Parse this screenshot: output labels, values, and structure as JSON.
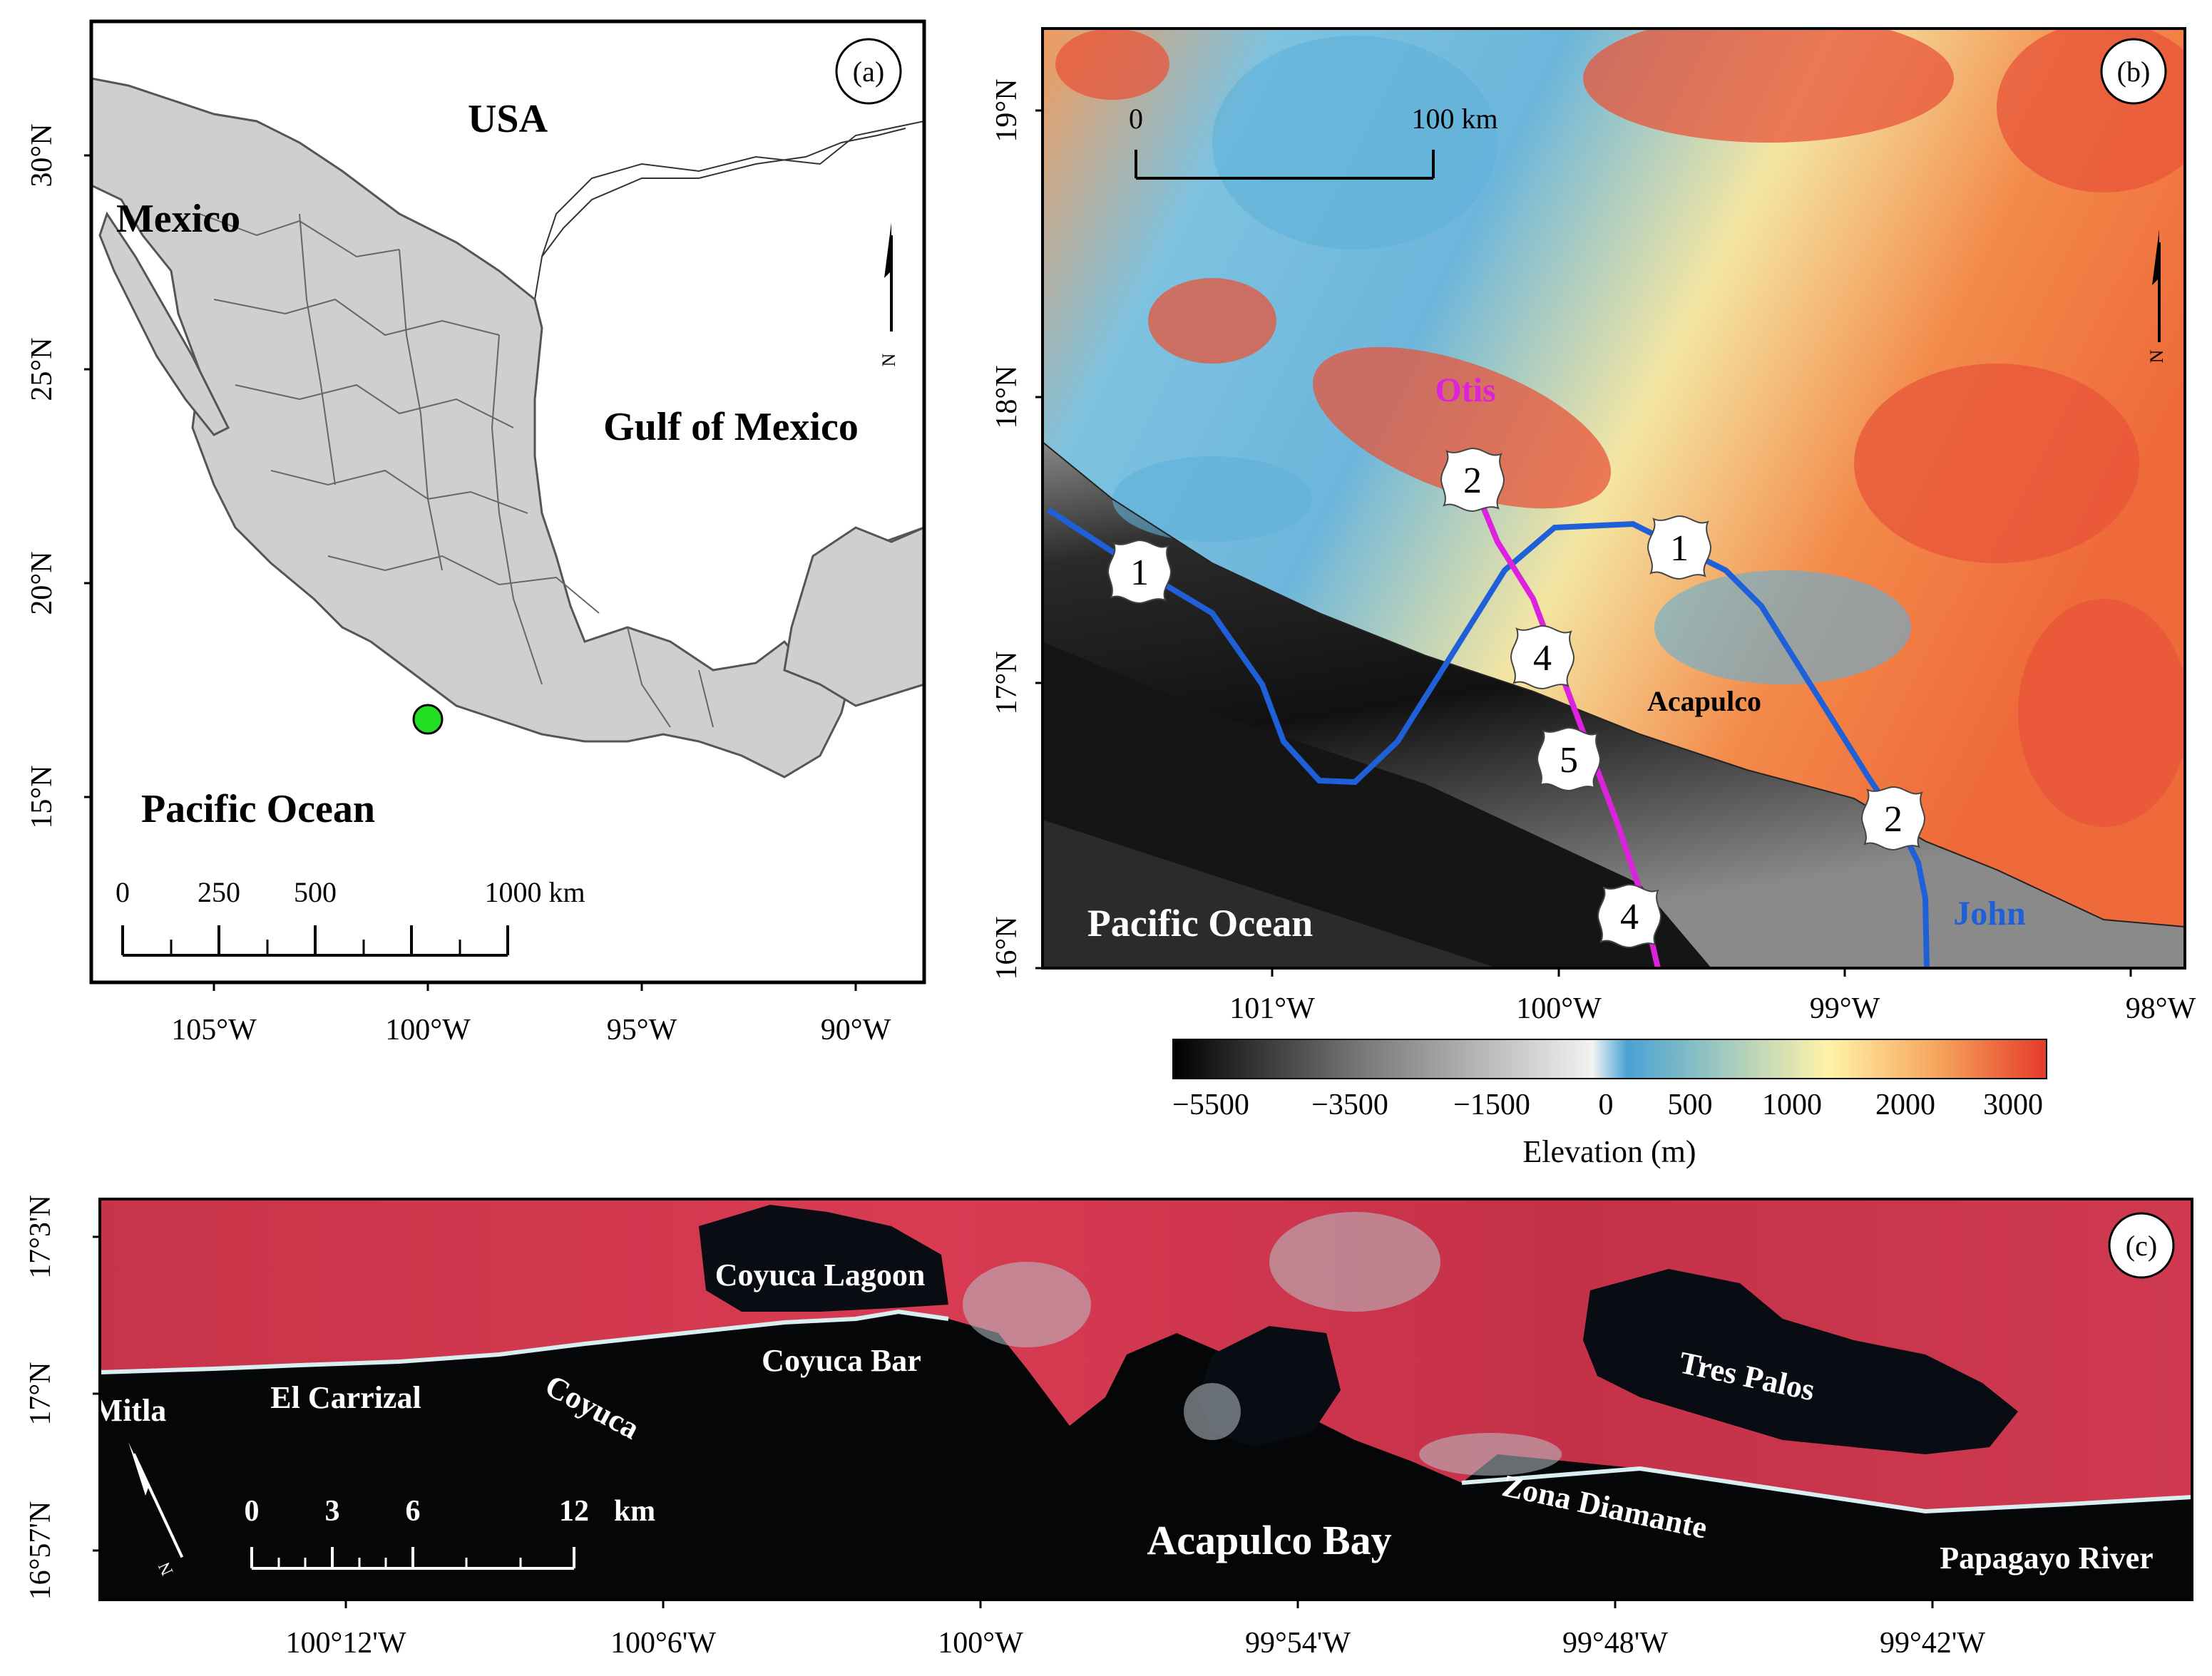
{
  "panel_a": {
    "label": "(a)",
    "lat_ticks": [
      "30°N",
      "25°N",
      "20°N",
      "15°N"
    ],
    "lon_ticks": [
      "105°W",
      "100°W",
      "95°W",
      "90°W"
    ],
    "places": {
      "usa": "USA",
      "mexico": "Mexico",
      "gulf": "Gulf of Mexico",
      "pacific": "Pacific Ocean"
    },
    "scale_bar": {
      "labels": [
        "0",
        "250",
        "500",
        "1000 km"
      ]
    },
    "north_letter": "N",
    "study_site_color": "#22dd22"
  },
  "panel_b": {
    "label": "(b)",
    "lat_ticks": [
      "19°N",
      "18°N",
      "17°N",
      "16°N"
    ],
    "lon_ticks": [
      "101°W",
      "100°W",
      "99°W",
      "98°W"
    ],
    "scale_bar": {
      "labels": [
        "0",
        "100 km"
      ]
    },
    "north_letter": "N",
    "places": {
      "pacific": "Pacific Ocean",
      "acapulco": "Acapulco"
    },
    "tracks": [
      {
        "name": "Otis",
        "color": "#dd22dd",
        "categories": [
          "2",
          "4",
          "5",
          "4"
        ]
      },
      {
        "name": "John",
        "color": "#1f5fd8",
        "categories": [
          "1",
          "1",
          "2"
        ]
      }
    ],
    "colorbar": {
      "title": "Elevation (m)",
      "ticks": [
        "−5500",
        "−3500",
        "−1500",
        "0",
        "500",
        "1000",
        "2000",
        "3000"
      ],
      "colors": [
        "#000000",
        "#7a7a7a",
        "#f2f2f2",
        "#4aa3d4",
        "#fff3a8",
        "#f6a15a",
        "#e53a2a"
      ]
    }
  },
  "panel_c": {
    "label": "(c)",
    "lat_ticks": [
      "17°3'N",
      "17°N",
      "16°57'N"
    ],
    "lon_ticks": [
      "100°12'W",
      "100°6'W",
      "100°W",
      "99°54'W",
      "99°48'W",
      "99°42'W"
    ],
    "places": {
      "mitla": "Mitla",
      "el_carrizal": "El Carrizal",
      "coyuca": "Coyuca",
      "coyuca_lagoon": "Coyuca Lagoon",
      "coyuca_bar": "Coyuca Bar",
      "acapulco_bay": "Acapulco Bay",
      "tres_palos": "Tres Palos",
      "zona_diamante": "Zona Diamante",
      "papagayo": "Papagayo River"
    },
    "scale_bar": {
      "labels": [
        "0",
        "3",
        "6",
        "12",
        "km"
      ]
    },
    "north_letter": "N"
  }
}
